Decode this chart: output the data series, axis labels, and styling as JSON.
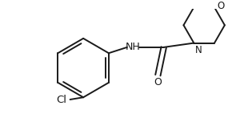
{
  "background_color": "#ffffff",
  "line_color": "#1a1a1a",
  "line_width": 1.4,
  "font_size": 8.5,
  "fig_width": 3.0,
  "fig_height": 1.52,
  "dpi": 100,
  "cl_label": "Cl",
  "nh_label": "NH",
  "o_carbonyl_label": "O",
  "n_morpholine_label": "N",
  "o_morpholine_label": "O"
}
